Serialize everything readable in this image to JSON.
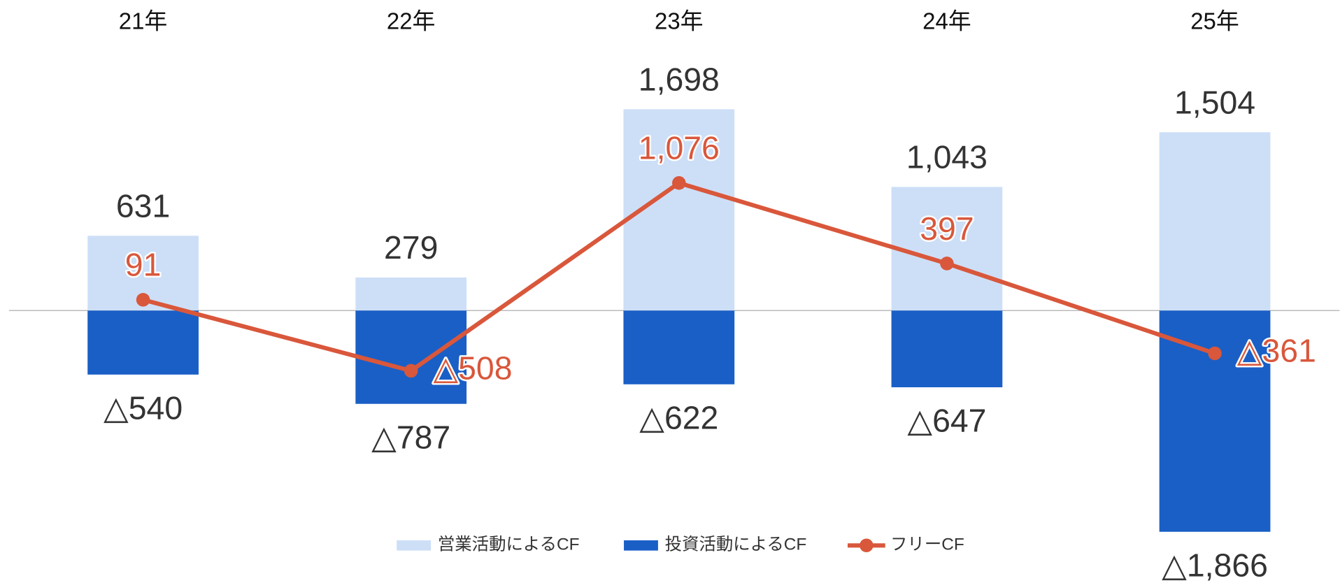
{
  "chart_data": {
    "type": "bar-line",
    "categories": [
      "21年",
      "22年",
      "23年",
      "24年",
      "25年"
    ],
    "series": [
      {
        "name": "営業活動によるCF",
        "type": "bar",
        "color": "#cddff7",
        "values": [
          631,
          279,
          1698,
          1043,
          1504
        ],
        "value_labels": [
          "631",
          "279",
          "1,698",
          "1,043",
          "1,504"
        ]
      },
      {
        "name": "投資活動によるCF",
        "type": "bar",
        "color": "#1a5fc6",
        "values": [
          -540,
          -787,
          -622,
          -647,
          -1866
        ],
        "value_labels": [
          "△540",
          "△787",
          "△622",
          "△647",
          "△1,866"
        ]
      },
      {
        "name": "フリーCF",
        "type": "line",
        "color": "#d9573b",
        "values": [
          91,
          -508,
          1076,
          397,
          -361
        ],
        "value_labels": [
          "91",
          "△508",
          "1,076",
          "397",
          "△361"
        ]
      }
    ]
  }
}
